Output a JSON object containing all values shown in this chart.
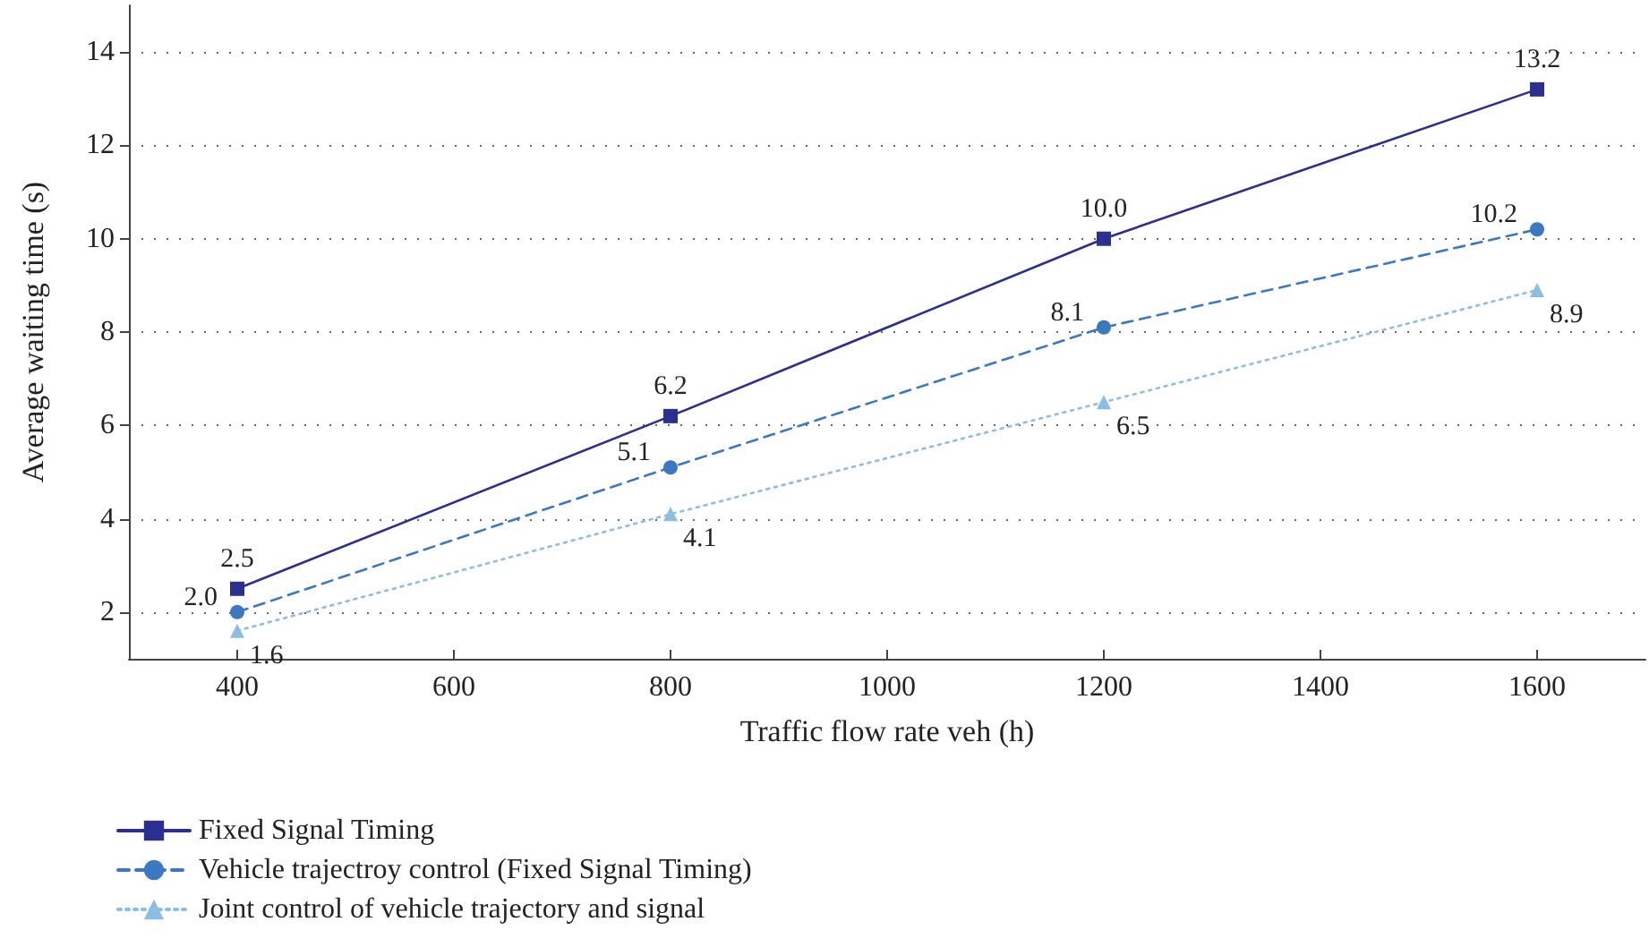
{
  "chart_data": {
    "type": "line",
    "xlabel": "Traffic flow rate veh (h)",
    "ylabel": "Average waiting time (s)",
    "x": [
      400,
      800,
      1200,
      1600
    ],
    "series": [
      {
        "name": "Fixed Signal Timing",
        "color": "#2b2f8f",
        "values": [
          2.5,
          6.2,
          10.0,
          13.2
        ],
        "value_labels": [
          "2.5",
          "6.2",
          "10.0",
          "13.2"
        ],
        "marker": "square",
        "line_style": "solid"
      },
      {
        "name": "Vehicle trajectroy control (Fixed Signal Timing)",
        "color": "#3a78c0",
        "values": [
          2.0,
          5.1,
          8.1,
          10.2
        ],
        "value_labels": [
          "2.0",
          "5.1",
          "8.1",
          "10.2"
        ],
        "marker": "circle",
        "line_style": "dashed"
      },
      {
        "name": "Joint control of vehicle trajectory and signal",
        "color": "#8dbde0",
        "values": [
          1.6,
          4.1,
          6.5,
          8.9
        ],
        "value_labels": [
          "1.6",
          "4.1",
          "6.5",
          "8.9"
        ],
        "marker": "triangle",
        "line_style": "dotted"
      }
    ],
    "xlim": [
      300,
      1700
    ],
    "xticks": [
      400,
      600,
      800,
      1000,
      1200,
      1400,
      1600
    ],
    "ylim": [
      1,
      15
    ],
    "yticks": [
      2,
      4,
      6,
      8,
      10,
      12,
      14
    ],
    "grid": "y",
    "legend": "bottom left"
  }
}
